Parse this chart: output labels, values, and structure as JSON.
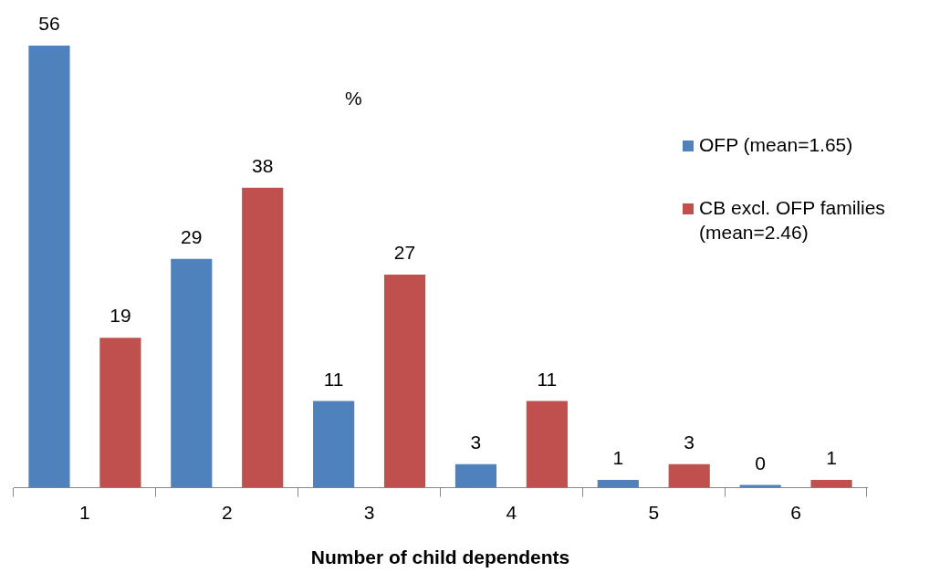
{
  "chart_data": {
    "type": "bar",
    "xlabel": "Number of child dependents",
    "annotations": [
      "%"
    ],
    "categories": [
      "1",
      "2",
      "3",
      "4",
      "5",
      "6"
    ],
    "series": [
      {
        "name": "OFP (mean=1.65)",
        "color": "#4f81bd",
        "values": [
          56,
          29,
          11,
          3,
          1,
          0
        ]
      },
      {
        "name": "CB excl. OFP families (mean=2.46)",
        "color": "#c0504d",
        "values": [
          19,
          38,
          27,
          11,
          3,
          1
        ]
      }
    ],
    "ylim": [
      0,
      56
    ],
    "data_labels": true,
    "legend": "right",
    "grid": false
  }
}
